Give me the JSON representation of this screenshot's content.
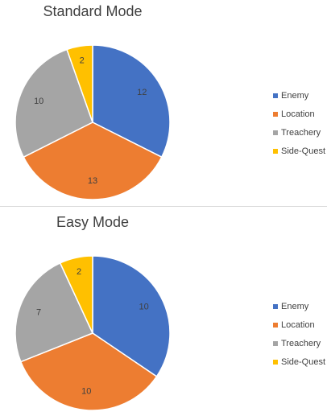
{
  "colors": {
    "Enemy": "#4472c4",
    "Location": "#ed7d31",
    "Treachery": "#a5a5a5",
    "Side-Quest": "#ffc000"
  },
  "chart_data": [
    {
      "type": "pie",
      "title": "Standard Mode",
      "categories": [
        "Enemy",
        "Location",
        "Treachery",
        "Side-Quest"
      ],
      "values": [
        12,
        13,
        10,
        2
      ],
      "data_labels": [
        "12",
        "13",
        "10",
        "2"
      ],
      "legend": [
        "Enemy",
        "Location",
        "Treachery",
        "Side-Quest"
      ],
      "legend_position": "right"
    },
    {
      "type": "pie",
      "title": "Easy Mode",
      "categories": [
        "Enemy",
        "Location",
        "Treachery",
        "Side-Quest"
      ],
      "values": [
        10,
        10,
        7,
        2
      ],
      "data_labels": [
        "10",
        "10",
        "7",
        "2"
      ],
      "legend": [
        "Enemy",
        "Location",
        "Treachery",
        "Side-Quest"
      ],
      "legend_position": "right"
    }
  ]
}
